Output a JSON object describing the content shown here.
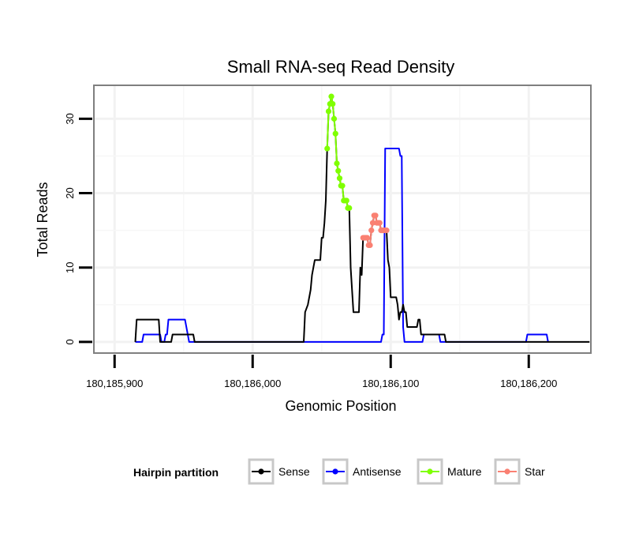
{
  "chart_data": {
    "type": "line",
    "title": "Small RNA-seq Read Density",
    "xlabel": "Genomic Position",
    "ylabel": "Total Reads",
    "xlim": [
      180185885,
      180186245
    ],
    "ylim": [
      -1.5,
      34.5
    ],
    "x_ticks": [
      180185900,
      180186000,
      180186100,
      180186200
    ],
    "x_tick_labels": [
      "180,185,900",
      "180,186,000",
      "180,186,100",
      "180,186,200"
    ],
    "y_ticks": [
      0,
      10,
      20,
      30
    ],
    "y_tick_labels": [
      "0",
      "10",
      "20",
      "30"
    ],
    "grid": true,
    "legend": {
      "title": "Hairpin partition",
      "position": "bottom",
      "entries": [
        {
          "name": "Sense",
          "color": "#000000"
        },
        {
          "name": "Antisense",
          "color": "#0000ff"
        },
        {
          "name": "Mature",
          "color": "#7fff00"
        },
        {
          "name": "Star",
          "color": "#fa8072"
        }
      ]
    },
    "series": [
      {
        "name": "Sense",
        "color": "#000000",
        "points": [
          [
            180185915,
            0
          ],
          [
            180185916,
            3
          ],
          [
            180185932,
            3
          ],
          [
            180185933,
            0
          ],
          [
            180185941,
            0
          ],
          [
            180185942,
            1
          ],
          [
            180185957,
            1
          ],
          [
            180185958,
            0
          ],
          [
            180186037,
            0
          ],
          [
            180186038,
            4
          ],
          [
            180186040,
            5
          ],
          [
            180186042,
            7
          ],
          [
            180186043,
            9
          ],
          [
            180186045,
            11
          ],
          [
            180186049,
            11
          ],
          [
            180186050,
            14
          ],
          [
            180186051,
            14
          ],
          [
            180186052,
            16
          ],
          [
            180186053,
            19
          ],
          [
            180186054,
            26
          ],
          [
            180186055,
            31
          ],
          [
            180186056,
            32
          ],
          [
            180186057,
            33
          ],
          [
            180186058,
            32
          ],
          [
            180186059,
            30
          ],
          [
            180186060,
            28
          ],
          [
            180186061,
            24
          ],
          [
            180186062,
            23
          ],
          [
            180186063,
            22
          ],
          [
            180186064,
            21
          ],
          [
            180186065,
            21
          ],
          [
            180186066,
            19
          ],
          [
            180186067,
            19
          ],
          [
            180186068,
            19
          ],
          [
            180186069,
            18
          ],
          [
            180186070,
            18
          ],
          [
            180186071,
            10
          ],
          [
            180186072,
            7
          ],
          [
            180186073,
            4
          ],
          [
            180186077,
            4
          ],
          [
            180186078,
            10
          ],
          [
            180186079,
            9
          ],
          [
            180186080,
            14
          ],
          [
            180186083,
            14
          ],
          [
            180186084,
            13
          ],
          [
            180186085,
            13
          ],
          [
            180186086,
            15
          ],
          [
            180186087,
            16
          ],
          [
            180186088,
            17
          ],
          [
            180186089,
            17
          ],
          [
            180186090,
            16
          ],
          [
            180186091,
            16
          ],
          [
            180186092,
            16
          ],
          [
            180186093,
            15
          ],
          [
            180186096,
            15
          ],
          [
            180186097,
            15
          ],
          [
            180186098,
            11
          ],
          [
            180186099,
            10
          ],
          [
            180186100,
            6
          ],
          [
            180186104,
            6
          ],
          [
            180186105,
            5
          ],
          [
            180186106,
            3
          ],
          [
            180186107,
            4
          ],
          [
            180186108,
            4
          ],
          [
            180186109,
            5
          ],
          [
            180186110,
            4
          ],
          [
            180186111,
            4
          ],
          [
            180186112,
            2
          ],
          [
            180186119,
            2
          ],
          [
            180186120,
            3
          ],
          [
            180186121,
            3
          ],
          [
            180186122,
            1
          ],
          [
            180186139,
            1
          ],
          [
            180186140,
            0
          ],
          [
            180186244,
            0
          ]
        ]
      },
      {
        "name": "Antisense",
        "color": "#0000ff",
        "points": [
          [
            180185915,
            0
          ],
          [
            180185920,
            0
          ],
          [
            180185921,
            1
          ],
          [
            180185933,
            1
          ],
          [
            180185934,
            0
          ],
          [
            180185936,
            0
          ],
          [
            180185937,
            1
          ],
          [
            180185938,
            1
          ],
          [
            180185939,
            3
          ],
          [
            180185951,
            3
          ],
          [
            180185952,
            2
          ],
          [
            180185953,
            1
          ],
          [
            180185954,
            0
          ],
          [
            180186093,
            0
          ],
          [
            180186094,
            1
          ],
          [
            180186095,
            1
          ],
          [
            180186096,
            26
          ],
          [
            180186106,
            26
          ],
          [
            180186107,
            25
          ],
          [
            180186108,
            25
          ],
          [
            180186109,
            2
          ],
          [
            180186110,
            0
          ],
          [
            180186123,
            0
          ],
          [
            180186124,
            1
          ],
          [
            180186135,
            1
          ],
          [
            180186136,
            0
          ],
          [
            180186198,
            0
          ],
          [
            180186199,
            1
          ],
          [
            180186213,
            1
          ],
          [
            180186214,
            0
          ]
        ]
      },
      {
        "name": "Mature",
        "color": "#7fff00",
        "points": [
          [
            180186054,
            26
          ],
          [
            180186055,
            31
          ],
          [
            180186056,
            32
          ],
          [
            180186057,
            33
          ],
          [
            180186058,
            32
          ],
          [
            180186059,
            30
          ],
          [
            180186060,
            28
          ],
          [
            180186061,
            24
          ],
          [
            180186062,
            23
          ],
          [
            180186063,
            22
          ],
          [
            180186064,
            21
          ],
          [
            180186065,
            21
          ],
          [
            180186066,
            19
          ],
          [
            180186067,
            19
          ],
          [
            180186068,
            19
          ],
          [
            180186069,
            18
          ],
          [
            180186070,
            18
          ]
        ]
      },
      {
        "name": "Star",
        "color": "#fa8072",
        "points": [
          [
            180186080,
            14
          ],
          [
            180186081,
            14
          ],
          [
            180186082,
            14
          ],
          [
            180186083,
            14
          ],
          [
            180186084,
            13
          ],
          [
            180186085,
            13
          ],
          [
            180186086,
            15
          ],
          [
            180186087,
            16
          ],
          [
            180186088,
            17
          ],
          [
            180186089,
            17
          ],
          [
            180186090,
            16
          ],
          [
            180186091,
            16
          ],
          [
            180186092,
            16
          ],
          [
            180186093,
            15
          ],
          [
            180186094,
            15
          ],
          [
            180186095,
            15
          ],
          [
            180186096,
            15
          ],
          [
            180186097,
            15
          ]
        ]
      }
    ]
  }
}
